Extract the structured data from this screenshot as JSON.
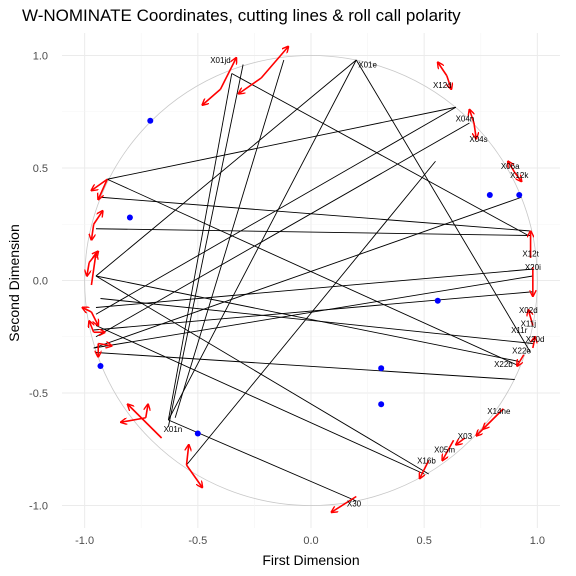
{
  "chart_data": {
    "type": "scatter",
    "title": "W-NOMINATE Coordinates, cutting lines & roll call polarity",
    "xlabel": "First Dimension",
    "ylabel": "Second Dimension",
    "xlim": [
      -1.1,
      1.1
    ],
    "ylim": [
      -1.1,
      1.1
    ],
    "xticks": [
      -1.0,
      -0.5,
      0.0,
      0.5,
      1.0
    ],
    "xtick_labels": [
      "-1.0",
      "-0.5",
      "0.0",
      "0.5",
      "1.0"
    ],
    "yticks": [
      -1.0,
      -0.5,
      0.0,
      0.5,
      1.0
    ],
    "ytick_labels": [
      "-1.0",
      "-0.5",
      "0.0",
      "0.5",
      "1.0"
    ],
    "grid": true,
    "unit_circle": true,
    "colors": {
      "legislator": "#0000ff",
      "polarity": "#ff0000",
      "cutline": "#000000",
      "circle": "#c8c8c8"
    },
    "legislators": [
      {
        "x": -0.71,
        "y": 0.71
      },
      {
        "x": -0.8,
        "y": 0.28
      },
      {
        "x": -0.93,
        "y": -0.38
      },
      {
        "x": -0.5,
        "y": -0.68
      },
      {
        "x": 0.31,
        "y": -0.39
      },
      {
        "x": 0.31,
        "y": -0.55
      },
      {
        "x": 0.56,
        "y": -0.09
      },
      {
        "x": 0.79,
        "y": 0.38
      },
      {
        "x": 0.92,
        "y": 0.38
      }
    ],
    "cutlines": [
      {
        "x1": 0.2,
        "y1": 0.98,
        "x2": -0.63,
        "y2": -0.62
      },
      {
        "x1": 0.2,
        "y1": 0.98,
        "x2": -0.95,
        "y2": 0.02
      },
      {
        "x1": 0.2,
        "y1": 0.98,
        "x2": 0.97,
        "y2": -0.32
      },
      {
        "x1": -0.35,
        "y1": 0.92,
        "x2": -0.63,
        "y2": -0.62
      },
      {
        "x1": -0.35,
        "y1": 0.92,
        "x2": 0.96,
        "y2": 0.2
      },
      {
        "x1": -0.3,
        "y1": 0.96,
        "x2": -0.63,
        "y2": -0.65
      },
      {
        "x1": 0.64,
        "y1": 0.77,
        "x2": -0.9,
        "y2": 0.45
      },
      {
        "x1": 0.64,
        "y1": 0.77,
        "x2": -0.95,
        "y2": -0.15
      },
      {
        "x1": 0.7,
        "y1": 0.7,
        "x2": -0.95,
        "y2": -0.25
      },
      {
        "x1": 0.93,
        "y1": 0.37,
        "x2": -0.96,
        "y2": -0.3
      },
      {
        "x1": -0.9,
        "y1": 0.45,
        "x2": 0.92,
        "y2": -0.38
      },
      {
        "x1": -0.95,
        "y1": 0.02,
        "x2": 0.92,
        "y2": -0.36
      },
      {
        "x1": -0.95,
        "y1": 0.02,
        "x2": 0.52,
        "y2": -0.86
      },
      {
        "x1": -0.95,
        "y1": -0.2,
        "x2": 0.5,
        "y2": -0.86
      },
      {
        "x1": -0.96,
        "y1": -0.3,
        "x2": 0.98,
        "y2": 0.02
      },
      {
        "x1": -0.96,
        "y1": -0.22,
        "x2": 0.98,
        "y2": -0.05
      },
      {
        "x1": -0.93,
        "y1": -0.08,
        "x2": 0.98,
        "y2": -0.28
      },
      {
        "x1": -0.93,
        "y1": 0.37,
        "x2": 0.97,
        "y2": 0.22
      },
      {
        "x1": -0.95,
        "y1": 0.23,
        "x2": 0.97,
        "y2": 0.2
      },
      {
        "x1": -0.95,
        "y1": -0.12,
        "x2": 0.97,
        "y2": 0.05
      },
      {
        "x1": -0.95,
        "y1": -0.32,
        "x2": 0.9,
        "y2": -0.44
      },
      {
        "x1": -0.63,
        "y1": -0.62,
        "x2": 0.2,
        "y2": -0.98
      },
      {
        "x1": -0.6,
        "y1": -0.61,
        "x2": -0.12,
        "y2": 0.98
      },
      {
        "x1": 0.55,
        "y1": 0.53,
        "x2": -0.55,
        "y2": -0.82
      }
    ],
    "rollcalls": [
      {
        "label": "X01jd",
        "x": -0.4,
        "y": 0.98
      },
      {
        "label": "X01e",
        "x": 0.25,
        "y": 0.96
      },
      {
        "label": "X12d",
        "x": 0.58,
        "y": 0.87
      },
      {
        "label": "X04n",
        "x": 0.68,
        "y": 0.72
      },
      {
        "label": "X04s",
        "x": 0.74,
        "y": 0.63
      },
      {
        "label": "X06a",
        "x": 0.88,
        "y": 0.51
      },
      {
        "label": "X12k",
        "x": 0.92,
        "y": 0.47
      },
      {
        "label": "X12t",
        "x": 0.97,
        "y": 0.12
      },
      {
        "label": "X20i",
        "x": 0.98,
        "y": 0.06
      },
      {
        "label": "X02d",
        "x": 0.96,
        "y": -0.13
      },
      {
        "label": "X11j",
        "x": 0.96,
        "y": -0.19
      },
      {
        "label": "X11r",
        "x": 0.92,
        "y": -0.22
      },
      {
        "label": "X20d",
        "x": 0.99,
        "y": -0.26
      },
      {
        "label": "X22e",
        "x": 0.93,
        "y": -0.31
      },
      {
        "label": "X22b",
        "x": 0.85,
        "y": -0.37
      },
      {
        "label": "X14ne",
        "x": 0.83,
        "y": -0.58
      },
      {
        "label": "X03",
        "x": 0.68,
        "y": -0.69
      },
      {
        "label": "X05m",
        "x": 0.59,
        "y": -0.75
      },
      {
        "label": "X16b",
        "x": 0.51,
        "y": -0.8
      },
      {
        "label": "X30",
        "x": 0.19,
        "y": -0.99
      },
      {
        "label": "X01n",
        "x": -0.61,
        "y": -0.66
      }
    ],
    "polarity_arrows": [
      {
        "x1": -0.22,
        "y1": 0.9,
        "x2": -0.1,
        "y2": 1.04
      },
      {
        "x1": -0.22,
        "y1": 0.9,
        "x2": -0.32,
        "y2": 0.83
      },
      {
        "x1": -0.4,
        "y1": 0.85,
        "x2": -0.33,
        "y2": 0.99
      },
      {
        "x1": -0.4,
        "y1": 0.85,
        "x2": -0.48,
        "y2": 0.78
      },
      {
        "x1": 0.6,
        "y1": 0.91,
        "x2": 0.56,
        "y2": 0.97
      },
      {
        "x1": 0.6,
        "y1": 0.91,
        "x2": 0.62,
        "y2": 0.85
      },
      {
        "x1": 0.72,
        "y1": 0.7,
        "x2": 0.7,
        "y2": 0.76
      },
      {
        "x1": 0.72,
        "y1": 0.7,
        "x2": 0.73,
        "y2": 0.63
      },
      {
        "x1": 0.9,
        "y1": 0.48,
        "x2": 0.87,
        "y2": 0.53
      },
      {
        "x1": 0.9,
        "y1": 0.48,
        "x2": 0.93,
        "y2": 0.44
      },
      {
        "x1": 0.97,
        "y1": 0.1,
        "x2": 0.97,
        "y2": 0.22
      },
      {
        "x1": 0.98,
        "y1": 0.06,
        "x2": 0.98,
        "y2": -0.07
      },
      {
        "x1": 0.98,
        "y1": -0.2,
        "x2": 0.96,
        "y2": -0.13
      },
      {
        "x1": 0.98,
        "y1": -0.3,
        "x2": 0.99,
        "y2": -0.25
      },
      {
        "x1": 0.94,
        "y1": -0.33,
        "x2": 0.91,
        "y2": -0.38
      },
      {
        "x1": 0.85,
        "y1": -0.57,
        "x2": 0.76,
        "y2": -0.66
      },
      {
        "x1": 0.76,
        "y1": -0.66,
        "x2": 0.73,
        "y2": -0.69
      },
      {
        "x1": 0.68,
        "y1": -0.7,
        "x2": 0.64,
        "y2": -0.73
      },
      {
        "x1": 0.63,
        "y1": -0.71,
        "x2": 0.58,
        "y2": -0.8
      },
      {
        "x1": 0.52,
        "y1": -0.8,
        "x2": 0.48,
        "y2": -0.88
      },
      {
        "x1": 0.2,
        "y1": -0.96,
        "x2": 0.09,
        "y2": -1.03
      },
      {
        "x1": -0.55,
        "y1": -0.82,
        "x2": -0.48,
        "y2": -0.92
      },
      {
        "x1": -0.55,
        "y1": -0.82,
        "x2": -0.54,
        "y2": -0.73
      },
      {
        "x1": -0.73,
        "y1": -0.61,
        "x2": -0.84,
        "y2": -0.63
      },
      {
        "x1": -0.73,
        "y1": -0.61,
        "x2": -0.72,
        "y2": -0.55
      },
      {
        "x1": -0.66,
        "y1": -0.7,
        "x2": -0.81,
        "y2": -0.55
      },
      {
        "x1": -0.9,
        "y1": 0.45,
        "x2": -0.97,
        "y2": 0.4
      },
      {
        "x1": -0.9,
        "y1": 0.45,
        "x2": -0.94,
        "y2": 0.36
      },
      {
        "x1": -0.96,
        "y1": 0.25,
        "x2": -0.92,
        "y2": 0.31
      },
      {
        "x1": -0.96,
        "y1": 0.25,
        "x2": -0.97,
        "y2": 0.18
      },
      {
        "x1": -0.98,
        "y1": 0.08,
        "x2": -0.94,
        "y2": 0.13
      },
      {
        "x1": -0.98,
        "y1": 0.08,
        "x2": -0.99,
        "y2": 0.02
      },
      {
        "x1": -0.97,
        "y1": -0.02,
        "x2": -0.95,
        "y2": 0.12
      },
      {
        "x1": -0.97,
        "y1": -0.14,
        "x2": -1.01,
        "y2": -0.12
      },
      {
        "x1": -0.97,
        "y1": -0.14,
        "x2": -0.94,
        "y2": -0.2
      },
      {
        "x1": -0.96,
        "y1": -0.23,
        "x2": -0.91,
        "y2": -0.23
      },
      {
        "x1": -0.96,
        "y1": -0.23,
        "x2": -0.98,
        "y2": -0.18
      },
      {
        "x1": -0.94,
        "y1": -0.28,
        "x2": -0.94,
        "y2": -0.34
      },
      {
        "x1": -0.94,
        "y1": -0.28,
        "x2": -0.88,
        "y2": -0.29
      }
    ]
  }
}
